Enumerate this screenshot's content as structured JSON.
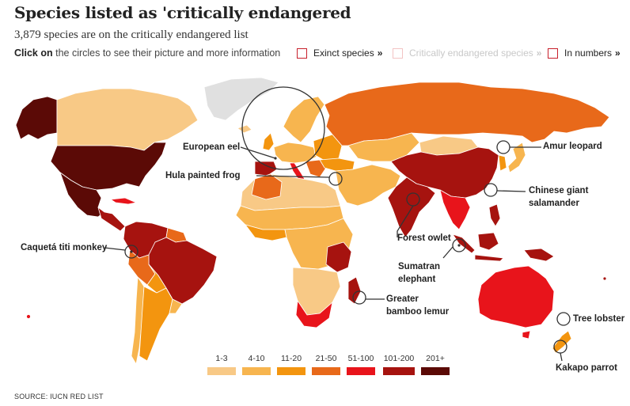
{
  "header": {
    "title": "Species listed as 'critically endangered",
    "subtitle": "3,879 species are on the critically endangered list",
    "instruction_bold": "Click on",
    "instruction_rest": " the circles to see their picture and more information"
  },
  "toggles": [
    {
      "label": "Exinct species",
      "arrow": "»",
      "active": true
    },
    {
      "label": "Critically endangered species",
      "arrow": "»",
      "active": false
    },
    {
      "label": "In numbers",
      "arrow": "»",
      "active": true
    }
  ],
  "colors": {
    "c1": "#f8c986",
    "c2": "#f7b54f",
    "c3": "#f3950f",
    "c4": "#e8691a",
    "c5": "#e8141b",
    "c6": "#a6130f",
    "c7": "#5b0a06",
    "nodata": "#e0e0e0",
    "circle": "#333333"
  },
  "legend": [
    {
      "label": "1-3",
      "color": "#f8c986"
    },
    {
      "label": "4-10",
      "color": "#f7b54f"
    },
    {
      "label": "11-20",
      "color": "#f3950f"
    },
    {
      "label": "21-50",
      "color": "#e8691a"
    },
    {
      "label": "51-100",
      "color": "#e8141b"
    },
    {
      "label": "101-200",
      "color": "#a6130f"
    },
    {
      "label": "201+",
      "color": "#5b0a06"
    }
  ],
  "species": [
    {
      "key": "european_eel",
      "label": "European eel"
    },
    {
      "key": "hula_frog",
      "label": "Hula painted frog"
    },
    {
      "key": "amur_leopard",
      "label": "Amur leopard"
    },
    {
      "key": "chinese_salamander",
      "label": "Chinese giant salamander"
    },
    {
      "key": "forest_owlet",
      "label": "Forest owlet"
    },
    {
      "key": "caqueta_monkey",
      "label": "Caquetá titi monkey"
    },
    {
      "key": "sumatran_elephant",
      "label": "Sumatran elephant"
    },
    {
      "key": "bamboo_lemur",
      "label": "Greater bamboo lemur"
    },
    {
      "key": "tree_lobster",
      "label": "Tree lobster"
    },
    {
      "key": "kakapo",
      "label": "Kakapo parrot"
    }
  ],
  "source": "SOURCE: IUCN RED LIST"
}
